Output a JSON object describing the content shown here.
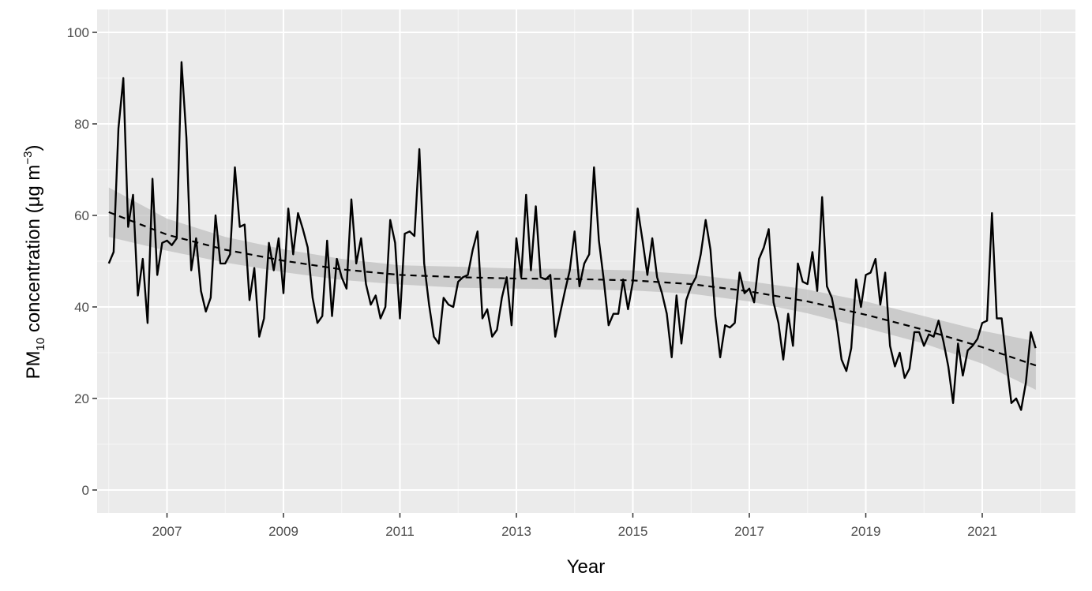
{
  "chart_data": {
    "type": "line",
    "title": "",
    "xlabel": "Year",
    "ylabel": {
      "main": "PM",
      "sub": "10",
      "rest": " concentration (",
      "mu": "μg m",
      "sup": "−3",
      "close": ")"
    },
    "xlim": [
      2005.8,
      2022.6
    ],
    "ylim": [
      -5,
      105
    ],
    "x_ticks": [
      2007,
      2009,
      2011,
      2013,
      2015,
      2017,
      2019,
      2021
    ],
    "x_tick_labels": [
      "2007",
      "2009",
      "2011",
      "2013",
      "2015",
      "2017",
      "2019",
      "2021"
    ],
    "y_ticks": [
      0,
      20,
      40,
      60,
      80,
      100
    ],
    "y_tick_labels": [
      "0",
      "20",
      "40",
      "60",
      "80",
      "100"
    ],
    "grid": true,
    "legend": "none",
    "colors": {
      "panel_background": "#ebebeb",
      "grid_major": "#ffffff",
      "series_line": "#000000",
      "trend_line": "#000000",
      "confidence_band": "#bdbdbd"
    },
    "series": [
      {
        "kind": "observed",
        "x_start": 2006.0,
        "x_step": 0.0833333,
        "values": [
          49.5,
          52.0,
          79.0,
          90.0,
          57.5,
          64.5,
          42.5,
          50.5,
          36.5,
          68.0,
          47.0,
          54.0,
          54.5,
          53.5,
          55.0,
          93.5,
          77.0,
          48.0,
          55.0,
          43.5,
          39.0,
          42.0,
          60.0,
          49.5,
          49.5,
          51.5,
          70.5,
          57.5,
          58.0,
          41.5,
          48.5,
          33.5,
          37.5,
          54.0,
          48.0,
          55.0,
          43.0,
          61.5,
          51.5,
          60.5,
          57.0,
          53.0,
          42.0,
          36.5,
          38.0,
          54.5,
          38.0,
          50.5,
          46.5,
          44.0,
          63.5,
          49.5,
          55.0,
          45.0,
          40.5,
          42.5,
          37.5,
          40.0,
          59.0,
          54.0,
          37.5,
          56.0,
          56.5,
          55.5,
          74.5,
          49.5,
          40.5,
          33.5,
          32.0,
          42.0,
          40.5,
          40.0,
          45.5,
          46.5,
          47.0,
          52.5,
          56.5,
          37.5,
          39.5,
          33.5,
          35.0,
          42.0,
          46.5,
          36.0,
          55.0,
          46.5,
          64.5,
          48.0,
          62.0,
          46.5,
          46.0,
          47.0,
          33.5,
          38.5,
          43.5,
          48.0,
          56.5,
          44.5,
          49.5,
          51.5,
          70.5,
          54.5,
          46.0,
          36.0,
          38.5,
          38.5,
          46.0,
          39.5,
          45.5,
          61.5,
          54.5,
          47.0,
          55.0,
          46.5,
          43.0,
          38.5,
          29.0,
          42.5,
          32.0,
          41.5,
          44.5,
          46.5,
          51.5,
          59.0,
          52.5,
          38.0,
          29.0,
          36.0,
          35.5,
          36.5,
          47.5,
          43.0,
          44.0,
          41.0,
          50.5,
          53.0,
          57.0,
          41.0,
          36.5,
          28.5,
          38.5,
          31.5,
          49.5,
          45.5,
          45.0,
          52.0,
          43.5,
          64.0,
          44.5,
          42.0,
          36.5,
          28.5,
          26.0,
          31.0,
          46.0,
          40.0,
          47.0,
          47.5,
          50.5,
          40.5,
          47.5,
          31.5,
          27.0,
          30.0,
          24.5,
          26.5,
          34.5,
          34.5,
          31.5,
          34.0,
          33.5,
          37.0,
          32.5,
          27.0,
          19.0,
          32.0,
          25.0,
          30.5,
          31.5,
          33.0,
          36.5,
          37.0,
          60.5,
          37.5,
          37.5,
          28.0,
          19.0,
          20.0,
          17.5,
          23.5,
          34.5,
          31.0
        ]
      },
      {
        "kind": "smooth",
        "x": [
          2006.0,
          2007.0,
          2008.0,
          2009.0,
          2010.0,
          2011.0,
          2012.0,
          2013.0,
          2014.0,
          2015.0,
          2016.0,
          2017.0,
          2018.0,
          2019.0,
          2020.0,
          2021.0,
          2021.92
        ],
        "y": [
          60.7,
          55.8,
          52.5,
          50.1,
          48.2,
          47.0,
          46.5,
          46.2,
          46.1,
          45.8,
          45.0,
          43.4,
          41.2,
          38.3,
          35.0,
          31.2,
          27.2
        ],
        "lower": [
          55.3,
          52.3,
          49.7,
          47.6,
          45.9,
          44.9,
          44.2,
          44.0,
          43.9,
          43.6,
          42.9,
          41.2,
          38.6,
          35.4,
          32.0,
          27.6,
          21.9
        ],
        "upper": [
          66.1,
          59.3,
          55.3,
          52.6,
          50.5,
          49.1,
          48.8,
          48.4,
          48.3,
          48.0,
          47.1,
          45.6,
          43.8,
          41.2,
          38.0,
          34.8,
          32.5
        ]
      }
    ]
  }
}
